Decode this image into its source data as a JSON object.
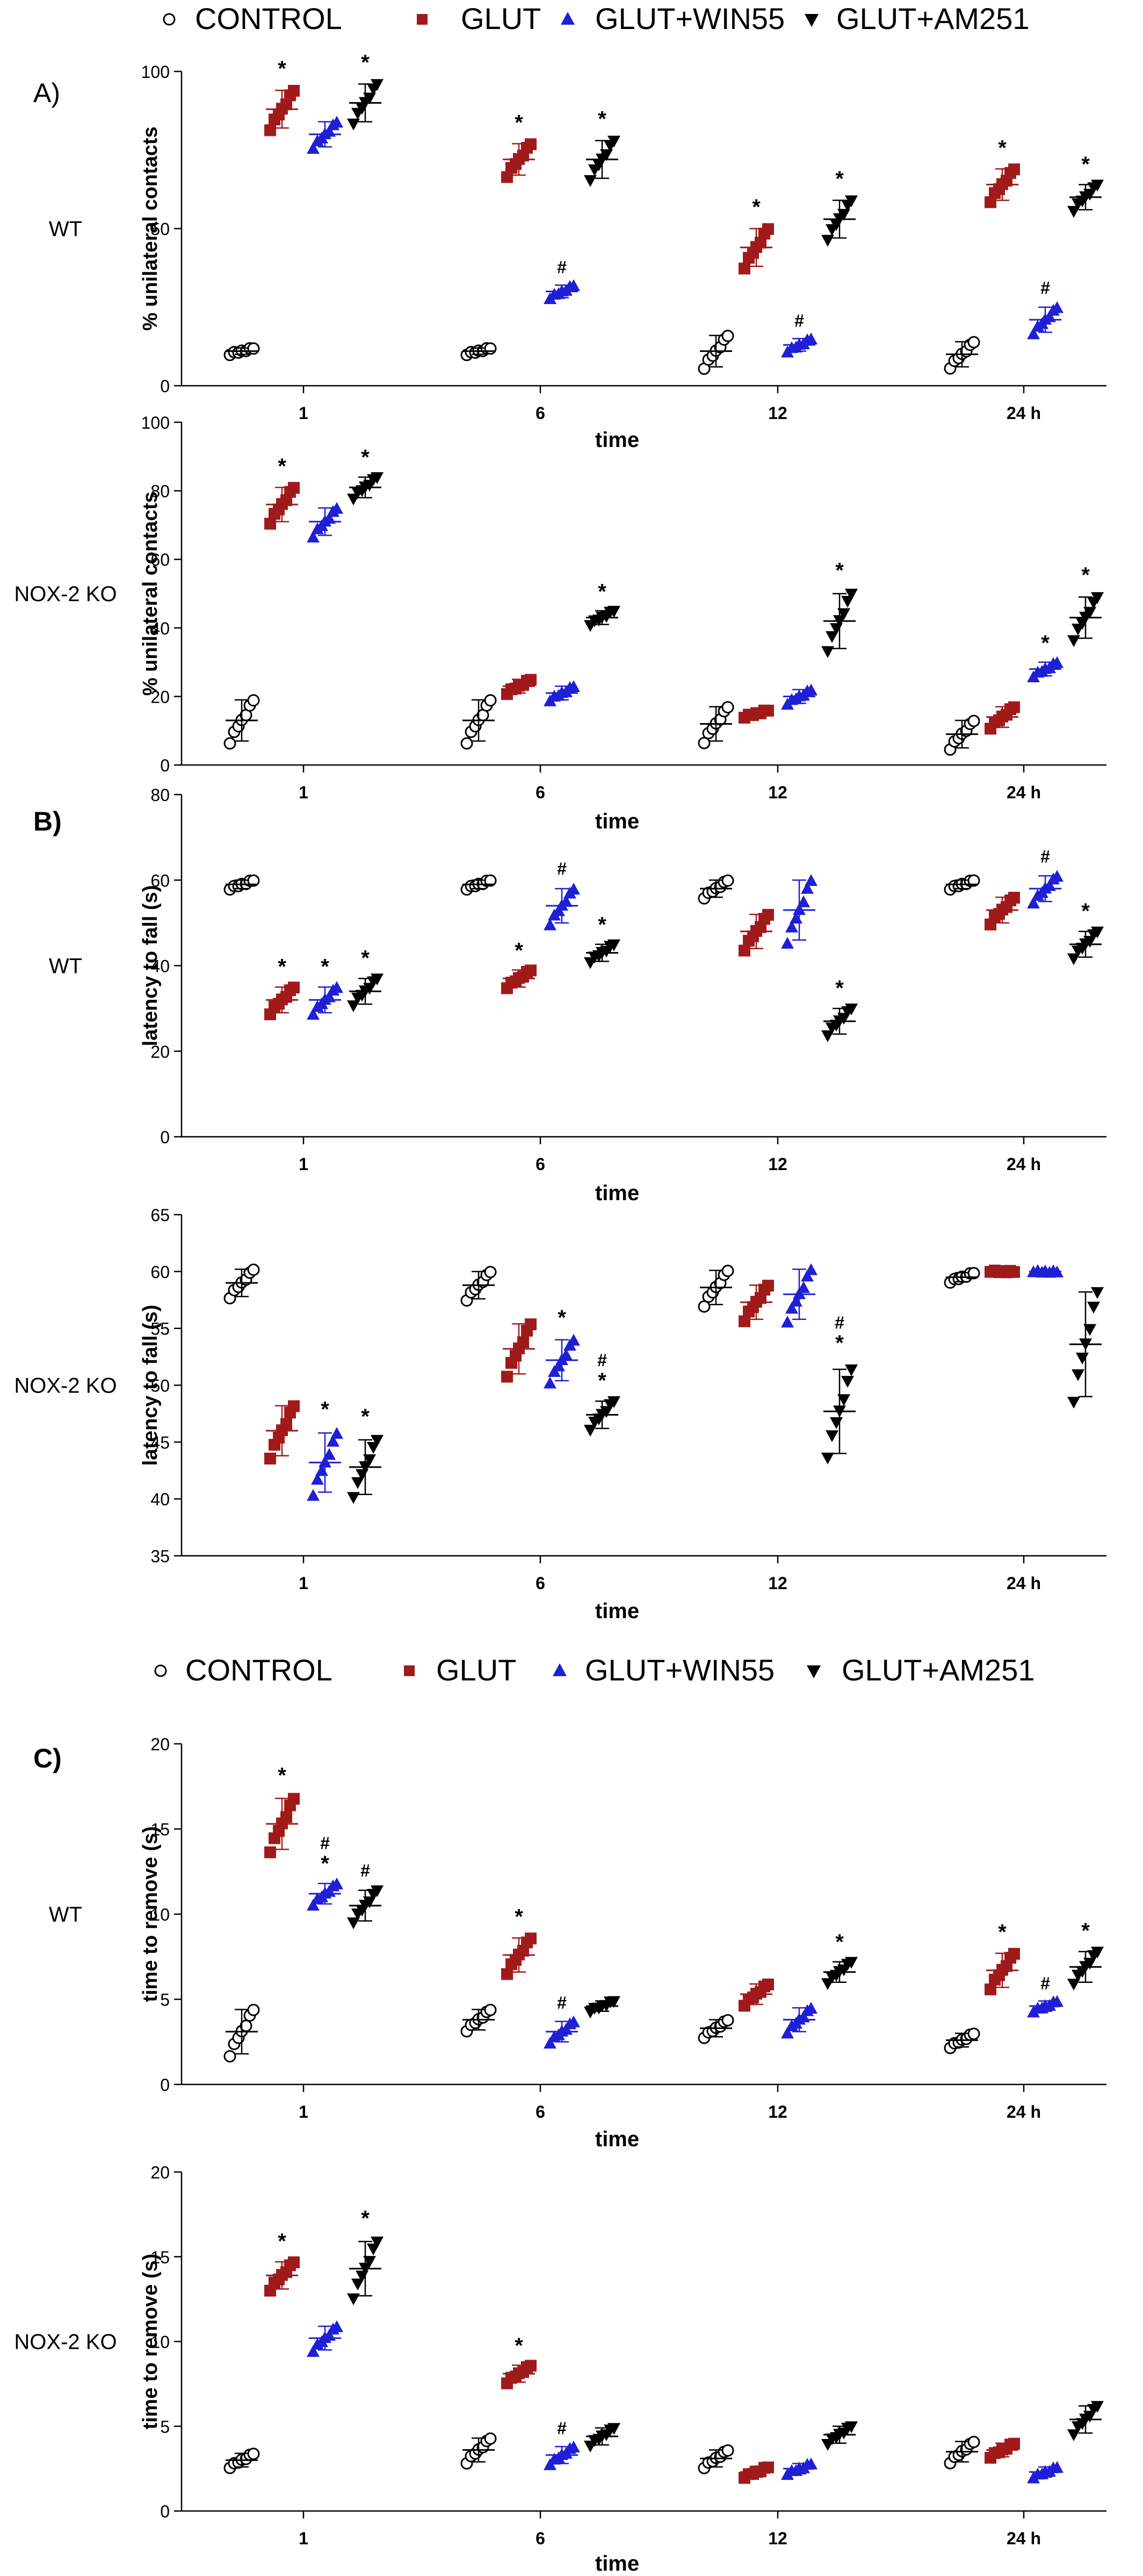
{
  "legend": {
    "items": [
      {
        "label": "CONTROL",
        "color": "#000000",
        "marker": "circle-open"
      },
      {
        "label": "GLUT",
        "color": "#a11a1a",
        "marker": "square"
      },
      {
        "label": "GLUT+WIN55",
        "color": "#1f1fd6",
        "marker": "triangle-up"
      },
      {
        "label": "GLUT+AM251",
        "color": "#000000",
        "marker": "triangle-down"
      }
    ]
  },
  "sections": {
    "a": "A)",
    "b": "B)",
    "c": "C)"
  },
  "group_colors": {
    "CONTROL": "#000000",
    "GLUT": "#a11a1a",
    "GLUT+WIN55": "#1f1fd6",
    "GLUT+AM251": "#000000"
  },
  "chart_data": [
    {
      "type": "scatter",
      "panel": "A",
      "row_label": "WT",
      "ylabel": "% unilateral contacts",
      "xlabel": "time",
      "ylim": [
        0,
        100
      ],
      "yticks": [
        0,
        50,
        100
      ],
      "categories": [
        "1",
        "6",
        "12",
        "24 h"
      ],
      "series": [
        {
          "name": "CONTROL",
          "mean": [
            11,
            11,
            11,
            10
          ],
          "sd": [
            1,
            1,
            5,
            4
          ],
          "marks": [
            "",
            "",
            "",
            ""
          ]
        },
        {
          "name": "GLUT",
          "mean": [
            88,
            72,
            44,
            64
          ],
          "sd": [
            6,
            5,
            6,
            5
          ],
          "marks": [
            "*",
            "*",
            "*",
            "*"
          ]
        },
        {
          "name": "GLUT+WIN55",
          "mean": [
            80,
            30,
            13,
            21
          ],
          "sd": [
            4,
            2,
            2,
            4
          ],
          "marks": [
            "",
            "#",
            "#",
            "#"
          ]
        },
        {
          "name": "GLUT+AM251",
          "mean": [
            90,
            72,
            53,
            60
          ],
          "sd": [
            6,
            6,
            6,
            4
          ],
          "marks": [
            "*",
            "*",
            "*",
            "*"
          ]
        }
      ]
    },
    {
      "type": "scatter",
      "panel": "A",
      "row_label": "NOX-2 KO",
      "ylabel": "% unilateral contacts",
      "xlabel": "time",
      "ylim": [
        0,
        100
      ],
      "yticks": [
        0,
        20,
        40,
        60,
        80,
        100
      ],
      "categories": [
        "1",
        "6",
        "12",
        "24 h"
      ],
      "series": [
        {
          "name": "CONTROL",
          "mean": [
            13,
            13,
            12,
            9
          ],
          "sd": [
            6,
            6,
            5,
            4
          ],
          "marks": [
            "",
            "",
            "",
            ""
          ]
        },
        {
          "name": "GLUT",
          "mean": [
            76,
            23,
            15,
            14
          ],
          "sd": [
            5,
            2,
            1,
            3
          ],
          "marks": [
            "*",
            "",
            "",
            ""
          ]
        },
        {
          "name": "GLUT+WIN55",
          "mean": [
            71,
            21,
            20,
            28
          ],
          "sd": [
            4,
            2,
            2,
            2
          ],
          "marks": [
            "",
            "",
            "",
            "*"
          ]
        },
        {
          "name": "GLUT+AM251",
          "mean": [
            81,
            43,
            42,
            43
          ],
          "sd": [
            3,
            2,
            8,
            6
          ],
          "marks": [
            "*",
            "*",
            "*",
            "*"
          ]
        }
      ]
    },
    {
      "type": "scatter",
      "panel": "B",
      "row_label": "WT",
      "ylabel": "latency to fall (s)",
      "xlabel": "time",
      "ylim": [
        0,
        80
      ],
      "yticks": [
        0,
        20,
        40,
        60,
        80
      ],
      "categories": [
        "1",
        "6",
        "12",
        "24 h"
      ],
      "series": [
        {
          "name": "CONTROL",
          "mean": [
            59,
            59,
            58,
            59
          ],
          "sd": [
            1,
            1,
            2,
            1
          ],
          "marks": [
            "",
            "",
            "",
            ""
          ]
        },
        {
          "name": "GLUT",
          "mean": [
            32,
            37,
            48,
            53
          ],
          "sd": [
            3,
            2,
            4,
            3
          ],
          "marks": [
            "*",
            "*",
            "",
            ""
          ]
        },
        {
          "name": "GLUT+WIN55",
          "mean": [
            32,
            54,
            53,
            58
          ],
          "sd": [
            3,
            4,
            7,
            3
          ],
          "marks": [
            "*",
            "#",
            "",
            "#"
          ]
        },
        {
          "name": "GLUT+AM251",
          "mean": [
            34,
            43,
            27,
            45
          ],
          "sd": [
            3,
            2,
            3,
            3
          ],
          "marks": [
            "*",
            "*",
            "*",
            "*"
          ]
        }
      ]
    },
    {
      "type": "scatter",
      "panel": "B",
      "row_label": "NOX-2 KO",
      "ylabel": "latency to fall (s)",
      "xlabel": "time",
      "ylim": [
        35,
        65
      ],
      "yticks": [
        35,
        40,
        45,
        50,
        55,
        60,
        65
      ],
      "categories": [
        "1",
        "6",
        "12",
        "24 h"
      ],
      "series": [
        {
          "name": "CONTROL",
          "mean": [
            59,
            58.8,
            58.6,
            59.5
          ],
          "sd": [
            1.2,
            1.2,
            1.5,
            0.4
          ],
          "marks": [
            "",
            "",
            "",
            ""
          ]
        },
        {
          "name": "GLUT",
          "mean": [
            46,
            53.2,
            57.3,
            60
          ],
          "sd": [
            2.2,
            2.2,
            1.5,
            0
          ],
          "marks": [
            "",
            "",
            "",
            ""
          ]
        },
        {
          "name": "GLUT+WIN55",
          "mean": [
            43.2,
            52.2,
            58,
            60
          ],
          "sd": [
            2.6,
            1.8,
            2.2,
            0
          ],
          "marks": [
            "*",
            "*",
            "",
            ""
          ]
        },
        {
          "name": "GLUT+AM251",
          "mean": [
            42.8,
            47.4,
            47.7,
            53.6
          ],
          "sd": [
            2.4,
            1.2,
            3.7,
            4.6
          ],
          "marks": [
            "*",
            "#*",
            "#*",
            ""
          ]
        }
      ]
    },
    {
      "type": "scatter",
      "panel": "C",
      "row_label": "WT",
      "ylabel": "time to remove (s)",
      "xlabel": "time",
      "ylim": [
        0,
        20
      ],
      "yticks": [
        0,
        5,
        10,
        15,
        20
      ],
      "categories": [
        "1",
        "6",
        "12",
        "24 h"
      ],
      "series": [
        {
          "name": "CONTROL",
          "mean": [
            3.1,
            3.8,
            3.3,
            2.6
          ],
          "sd": [
            1.3,
            0.6,
            0.5,
            0.4
          ],
          "marks": [
            "",
            "",
            "",
            ""
          ]
        },
        {
          "name": "GLUT",
          "mean": [
            15.3,
            7.6,
            5.3,
            6.7
          ],
          "sd": [
            1.5,
            1.0,
            0.6,
            1.0
          ],
          "marks": [
            "*",
            "*",
            "",
            "*"
          ]
        },
        {
          "name": "GLUT+WIN55",
          "mean": [
            11.2,
            3.1,
            3.8,
            4.6
          ],
          "sd": [
            0.6,
            0.6,
            0.7,
            0.3
          ],
          "marks": [
            "#*",
            "#",
            "",
            "#"
          ]
        },
        {
          "name": "GLUT+AM251",
          "mean": [
            10.5,
            4.6,
            6.6,
            6.9
          ],
          "sd": [
            0.9,
            0.3,
            0.6,
            0.9
          ],
          "marks": [
            "#",
            "",
            "*",
            "*"
          ]
        }
      ]
    },
    {
      "type": "scatter",
      "panel": "C",
      "row_label": "NOX-2 KO",
      "ylabel": "time to remove (s)",
      "xlabel": "time",
      "ylim": [
        0,
        20
      ],
      "yticks": [
        0,
        5,
        10,
        15,
        20
      ],
      "categories": [
        "1",
        "6",
        "12",
        "24 h"
      ],
      "series": [
        {
          "name": "CONTROL",
          "mean": [
            3.0,
            3.6,
            3.1,
            3.5
          ],
          "sd": [
            0.4,
            0.7,
            0.5,
            0.6
          ],
          "marks": [
            "",
            "",
            "",
            ""
          ]
        },
        {
          "name": "GLUT",
          "mean": [
            13.9,
            8.1,
            2.3,
            3.6
          ],
          "sd": [
            0.8,
            0.5,
            0.3,
            0.4
          ],
          "marks": [
            "*",
            "*",
            "",
            ""
          ]
        },
        {
          "name": "GLUT+WIN55",
          "mean": [
            10.2,
            3.3,
            2.5,
            2.3
          ],
          "sd": [
            0.7,
            0.5,
            0.3,
            0.3
          ],
          "marks": [
            "",
            "#",
            "",
            ""
          ]
        },
        {
          "name": "GLUT+AM251",
          "mean": [
            14.3,
            4.4,
            4.5,
            5.4
          ],
          "sd": [
            1.6,
            0.5,
            0.5,
            0.8
          ],
          "marks": [
            "*",
            "",
            "",
            ""
          ]
        }
      ]
    }
  ]
}
